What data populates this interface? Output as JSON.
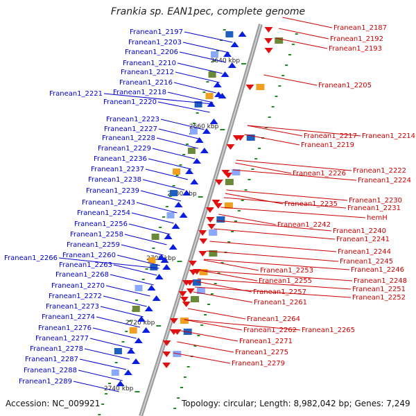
{
  "title": "Frankia sp. EAN1pec, complete genome",
  "accession": "Accession: NC_009921",
  "summary": "Topology: circular; Length: 8,982,042 bp; Genes: 7,249",
  "colors": {
    "left_label": "#0000cc",
    "right_label": "#cc0000",
    "axis": "#999999",
    "tick": "#228822"
  },
  "kbp_marks": [
    "2640 kbp",
    "2660 kbp",
    "2680 kbp",
    "2700 kbp",
    "2720 kbp",
    "2740 kbp"
  ],
  "left_genes": [
    "Franean1_2197",
    "Franean1_2203",
    "Franean1_2206",
    "Franean1_2210",
    "Franean1_2212",
    "Franean1_2216",
    "Franean1_2221",
    "Franean1_2218",
    "Franean1_2220",
    "Franean1_2223",
    "Franean1_2227",
    "Franean1_2228",
    "Franean1_2229",
    "Franean1_2236",
    "Franean1_2237",
    "Franean1_2238",
    "Franean1_2239",
    "Franean1_2243",
    "Franean1_2254",
    "Franean1_2256",
    "Franean1_2258",
    "Franean1_2259",
    "Franean1_2266",
    "Franean1_2260",
    "Franean1_2263",
    "Franean1_2268",
    "Franean1_2270",
    "Franean1_2272",
    "Franean1_2273",
    "Franean1_2274",
    "Franean1_2276",
    "Franean1_2277",
    "Franean1_2278",
    "Franean1_2287",
    "Franean1_2288",
    "Franean1_2289"
  ],
  "right_genes": [
    "Franean1_2187",
    "Franean1_2192",
    "Franean1_2193",
    "Franean1_2205",
    "Franean1_2217",
    "Franean1_2214",
    "Franean1_2219",
    "Franean1_2222",
    "Franean1_2226",
    "Franean1_2224",
    "Franean1_2230",
    "Franean1_2235",
    "Franean1_2231",
    "hemH",
    "Franean1_2242",
    "Franean1_2240",
    "Franean1_2241",
    "Franean1_2244",
    "Franean1_2245",
    "Franean1_2253",
    "Franean1_2246",
    "Franean1_2255",
    "Franean1_2248",
    "Franean1_2251",
    "Franean1_2257",
    "Franean1_2252",
    "Franean1_2261",
    "Franean1_2264",
    "Franean1_2262",
    "Franean1_2265",
    "Franean1_2271",
    "Franean1_2275",
    "Franean1_2279"
  ]
}
